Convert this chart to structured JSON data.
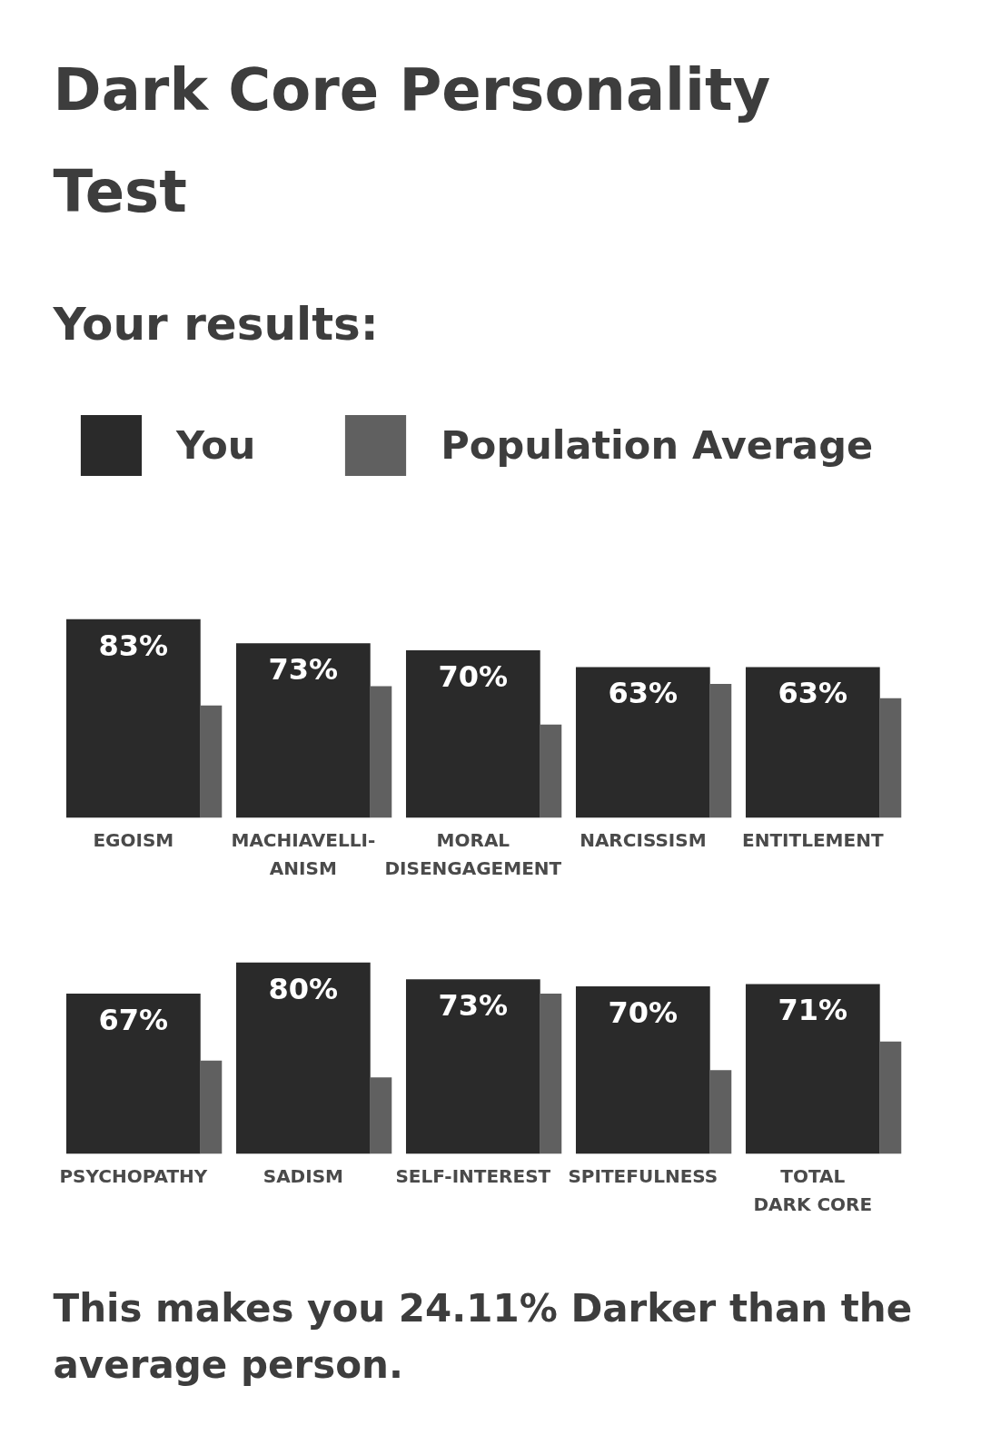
{
  "chart_data": [
    {
      "type": "bar",
      "title": "Dark Core Personality Test",
      "subtitle": "Your results:",
      "categories": [
        "EGOISM",
        "MACHIAVELLI-\nANISM",
        "MORAL\nDISENGAGEMENT",
        "NARCISSISM",
        "ENTITLEMENT"
      ],
      "series": [
        {
          "name": "You",
          "color": "#2a2a2a",
          "values": [
            83,
            73,
            70,
            63,
            63
          ],
          "value_labels": [
            "83%",
            "73%",
            "70%",
            "63%",
            "63%"
          ]
        },
        {
          "name": "Population Average",
          "color": "#606060",
          "values": [
            47,
            55,
            39,
            56,
            50
          ]
        }
      ],
      "legend": "top left",
      "tick_labels": "x"
    },
    {
      "type": "bar",
      "categories": [
        "PSYCHOPATHY",
        "SADISM",
        "SELF-INTEREST",
        "SPITEFULNESS",
        "TOTAL\nDARK CORE"
      ],
      "series": [
        {
          "color": "#2a2a2a",
          "values": [
            67,
            80,
            73,
            70,
            71
          ],
          "value_labels": [
            "67%",
            "80%",
            "73%",
            "70%",
            "71%"
          ]
        },
        {
          "color": "#606060",
          "values": [
            39,
            32,
            67,
            35,
            47
          ]
        }
      ],
      "tick_labels": "x",
      "annotations": [
        "This makes you 24.11% Darker than the average person."
      ]
    }
  ]
}
